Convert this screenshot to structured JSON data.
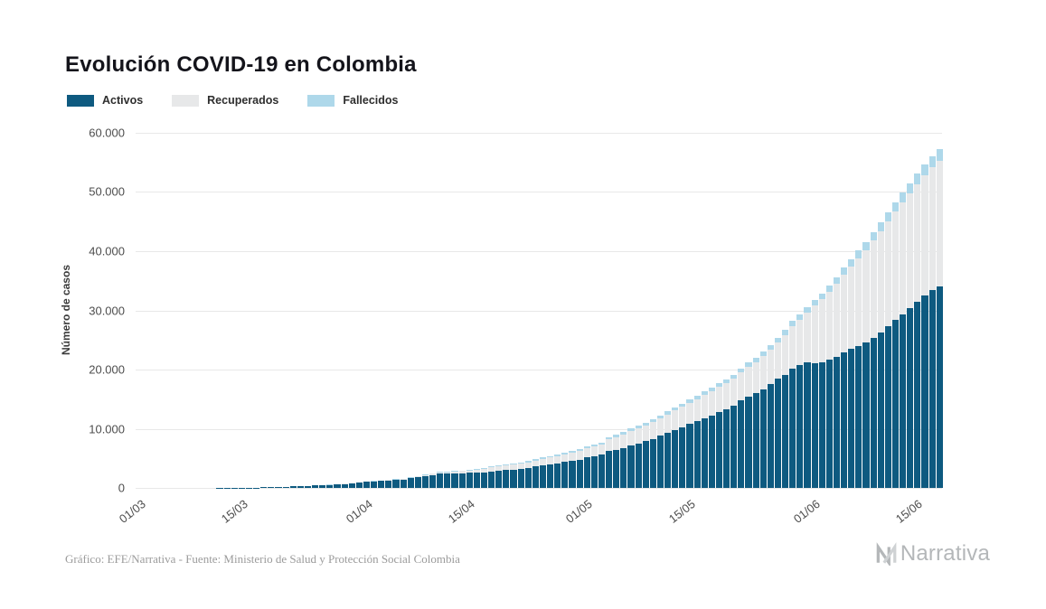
{
  "title": "Evolución COVID-19 en Colombia",
  "legend": [
    {
      "label": "Activos",
      "color": "#0e5a80"
    },
    {
      "label": "Recuperados",
      "color": "#e7e8e9"
    },
    {
      "label": "Fallecidos",
      "color": "#aed8ea"
    }
  ],
  "footer": {
    "source": "Gráfico: EFE/Narrativa - Fuente: Ministerio de Salud y Protección Social Colombia",
    "brand": "Narrativa"
  },
  "chart_data": {
    "type": "bar",
    "stacked": true,
    "title": "Evolución COVID-19 en Colombia",
    "xlabel": "",
    "ylabel": "Número de casos",
    "ylim": [
      0,
      60000
    ],
    "yticks": [
      0,
      10000,
      20000,
      30000,
      40000,
      50000,
      60000
    ],
    "ytick_labels": [
      "0",
      "10.000",
      "20.000",
      "30.000",
      "40.000",
      "50.000",
      "60.000"
    ],
    "xtick_labels": [
      "01/03",
      "15/03",
      "01/04",
      "15/04",
      "01/05",
      "15/05",
      "01/06",
      "15/06"
    ],
    "grid": "horizontal",
    "legend_position": "top-left",
    "dates": [
      "01/03",
      "02/03",
      "03/03",
      "04/03",
      "05/03",
      "06/03",
      "07/03",
      "08/03",
      "09/03",
      "10/03",
      "11/03",
      "12/03",
      "13/03",
      "14/03",
      "15/03",
      "16/03",
      "17/03",
      "18/03",
      "19/03",
      "20/03",
      "21/03",
      "22/03",
      "23/03",
      "24/03",
      "25/03",
      "26/03",
      "27/03",
      "28/03",
      "29/03",
      "30/03",
      "31/03",
      "01/04",
      "02/04",
      "03/04",
      "04/04",
      "05/04",
      "06/04",
      "07/04",
      "08/04",
      "09/04",
      "10/04",
      "11/04",
      "12/04",
      "13/04",
      "14/04",
      "15/04",
      "16/04",
      "17/04",
      "18/04",
      "19/04",
      "20/04",
      "21/04",
      "22/04",
      "23/04",
      "24/04",
      "25/04",
      "26/04",
      "27/04",
      "28/04",
      "29/04",
      "30/04",
      "01/05",
      "02/05",
      "03/05",
      "04/05",
      "05/05",
      "06/05",
      "07/05",
      "08/05",
      "09/05",
      "10/05",
      "11/05",
      "12/05",
      "13/05",
      "14/05",
      "15/05",
      "16/05",
      "17/05",
      "18/05",
      "19/05",
      "20/05",
      "21/05",
      "22/05",
      "23/05",
      "24/05",
      "25/05",
      "26/05",
      "27/05",
      "28/05",
      "29/05",
      "30/05",
      "31/05",
      "01/06",
      "02/06",
      "03/06",
      "04/06",
      "05/06",
      "06/06",
      "07/06",
      "08/06",
      "09/06",
      "10/06",
      "11/06",
      "12/06",
      "13/06",
      "14/06",
      "15/06",
      "16/06",
      "17/06",
      "18/06"
    ],
    "series": [
      {
        "name": "Activos",
        "color": "#0e5a80",
        "values": [
          0,
          0,
          0,
          0,
          0,
          1,
          1,
          1,
          3,
          8,
          9,
          13,
          16,
          24,
          34,
          57,
          75,
          102,
          145,
          196,
          226,
          271,
          298,
          369,
          458,
          477,
          523,
          592,
          682,
          771,
          859,
          1009,
          1087,
          1187,
          1289,
          1362,
          1445,
          1630,
          1877,
          1980,
          2196,
          2395,
          2397,
          2421,
          2498,
          2522,
          2539,
          2652,
          2744,
          2878,
          2984,
          3126,
          3280,
          3419,
          3653,
          3842,
          4002,
          4134,
          4412,
          4522,
          4775,
          5141,
          5295,
          5606,
          6222,
          6414,
          6749,
          7199,
          7481,
          7895,
          8309,
          8808,
          9288,
          9727,
          10210,
          10790,
          11249,
          11800,
          12272,
          12801,
          13247,
          13874,
          14754,
          15432,
          15966,
          16716,
          17514,
          18411,
          19148,
          20225,
          20833,
          21207,
          21124,
          21255,
          21663,
          22155,
          22845,
          23441,
          23942,
          24578,
          25367,
          26312,
          27305,
          28358,
          29333,
          30374,
          31470,
          32466,
          33461,
          34114
        ]
      },
      {
        "name": "Recuperados",
        "color": "#e7e8e9",
        "values": [
          0,
          0,
          0,
          0,
          0,
          0,
          0,
          0,
          0,
          0,
          0,
          0,
          0,
          0,
          0,
          0,
          0,
          0,
          0,
          0,
          3,
          3,
          5,
          6,
          8,
          8,
          10,
          10,
          10,
          15,
          31,
          39,
          55,
          55,
          85,
          88,
          88,
          100,
          123,
          174,
          197,
          214,
          270,
          319,
          354,
          452,
          550,
          634,
          711,
          735,
          804,
          827,
          870,
          927,
          1003,
          1067,
          1133,
          1210,
          1268,
          1411,
          1439,
          1551,
          1666,
          1722,
          2013,
          2148,
          2300,
          2424,
          2569,
          2705,
          2825,
          2971,
          3133,
          3358,
          3460,
          3587,
          3751,
          3903,
          4050,
          4256,
          4431,
          4575,
          4718,
          5016,
          5265,
          5511,
          5787,
          6133,
          6687,
          7121,
          7632,
          8347,
          9700,
          10600,
          11450,
          12300,
          13150,
          14000,
          14850,
          15650,
          16400,
          17100,
          17750,
          18350,
          18900,
          19400,
          19850,
          20300,
          20750,
          21150
        ]
      },
      {
        "name": "Fallecidos",
        "color": "#aed8ea",
        "values": [
          0,
          0,
          0,
          0,
          0,
          0,
          0,
          0,
          0,
          0,
          0,
          0,
          0,
          0,
          0,
          0,
          0,
          0,
          0,
          0,
          2,
          3,
          3,
          3,
          4,
          6,
          6,
          6,
          10,
          12,
          16,
          17,
          19,
          25,
          32,
          35,
          46,
          50,
          54,
          69,
          80,
          100,
          109,
          112,
          127,
          131,
          144,
          153,
          166,
          179,
          189,
          196,
          206,
          215,
          225,
          233,
          244,
          253,
          269,
          278,
          293,
          314,
          324,
          340,
          378,
          397,
          407,
          428,
          445,
          463,
          479,
          493,
          509,
          525,
          546,
          562,
          574,
          592,
          613,
          630,
          652,
          682,
          705,
          727,
          750,
          776,
          803,
          822,
          853,
          890,
          918,
          939,
          1009,
          1045,
          1087,
          1145,
          1205,
          1259,
          1308,
          1372,
          1433,
          1488,
          1545,
          1592,
          1667,
          1726,
          1780,
          1834,
          1889,
          1936
        ]
      }
    ]
  }
}
